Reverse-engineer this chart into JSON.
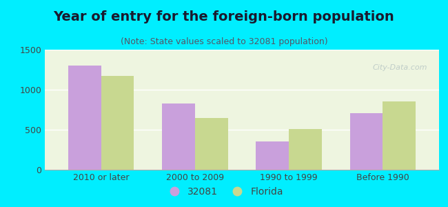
{
  "title": "Year of entry for the foreign-born population",
  "subtitle": "(Note: State values scaled to 32081 population)",
  "categories": [
    "2010 or later",
    "2000 to 2009",
    "1990 to 1999",
    "Before 1990"
  ],
  "values_32081": [
    1300,
    830,
    350,
    710
  ],
  "values_florida": [
    1170,
    650,
    510,
    850
  ],
  "color_32081": "#c9a0dc",
  "color_florida": "#c8d890",
  "background_outer": "#00eeff",
  "background_inner": "#eef5e0",
  "ylim": [
    0,
    1500
  ],
  "yticks": [
    0,
    500,
    1000,
    1500
  ],
  "legend_label_32081": "32081",
  "legend_label_florida": "Florida",
  "bar_width": 0.35,
  "title_fontsize": 14,
  "subtitle_fontsize": 9,
  "tick_fontsize": 9,
  "legend_fontsize": 10,
  "title_color": "#1a1a2e",
  "subtitle_color": "#555566",
  "tick_color": "#444444",
  "watermark_text": "City-Data.com",
  "watermark_color": "#b0c0c0",
  "watermark_alpha": 0.75
}
